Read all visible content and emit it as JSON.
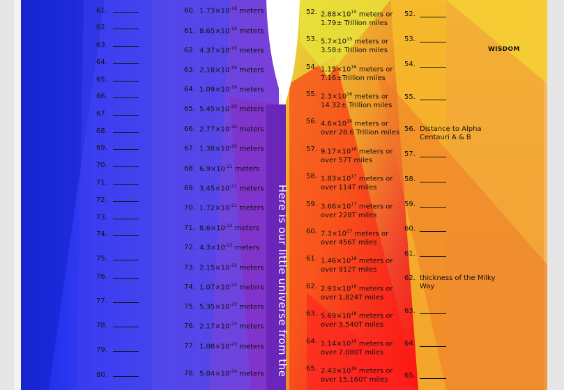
{
  "heading": "WISDOM",
  "vertical_caption": "Here is our little universe from the",
  "col1": [
    "61.",
    "62.",
    "63.",
    "64.",
    "65.",
    "66.",
    "67.",
    "68.",
    "69.",
    "70.",
    "71.",
    "72.",
    "73.",
    "74.",
    "75.",
    "76.",
    "77.",
    "78.",
    "79.",
    "80."
  ],
  "col2": [
    {
      "n": "60.",
      "m": "1.73×10",
      "e": "-18",
      "u": " meters"
    },
    {
      "n": "61.",
      "m": "8.65×10",
      "e": "-19",
      "u": " meters"
    },
    {
      "n": "62.",
      "m": "4.37×10",
      "e": "-19",
      "u": " meters"
    },
    {
      "n": "63.",
      "m": "2.18×10",
      "e": "-19",
      "u": " meters"
    },
    {
      "n": "64.",
      "m": "1.09×10",
      "e": "-19",
      "u": " meters"
    },
    {
      "n": "65.",
      "m": "5.45×10",
      "e": "-20",
      "u": " meters"
    },
    {
      "n": "66.",
      "m": "2.77×10",
      "e": "-20",
      "u": " meters"
    },
    {
      "n": "67.",
      "m": "1.38×10",
      "e": "-20",
      "u": " meters"
    },
    {
      "n": "68.",
      "m": "6.9×10",
      "e": "-21",
      "u": " meters"
    },
    {
      "n": "69.",
      "m": "3.45×10",
      "e": "-21",
      "u": " meters"
    },
    {
      "n": "70.",
      "m": "1.72×10",
      "e": "-21",
      "u": " meters"
    },
    {
      "n": "71.",
      "m": "8.6×10",
      "e": "-22",
      "u": " meters"
    },
    {
      "n": "72.",
      "m": "4.3×10",
      "e": "-22",
      "u": " meters"
    },
    {
      "n": "73.",
      "m": "2.15×10",
      "e": "-22",
      "u": " meters"
    },
    {
      "n": "74.",
      "m": "1.07×10",
      "e": "-22",
      "u": " meters"
    },
    {
      "n": "75.",
      "m": "5.35×10",
      "e": "-23",
      "u": " meters"
    },
    {
      "n": "76.",
      "m": "2.17×10",
      "e": "-23",
      "u": " meters"
    },
    {
      "n": "77.",
      "m": "1.08×10",
      "e": "-23",
      "u": " meters"
    },
    {
      "n": "78.",
      "m": "5.04×10",
      "e": "-24",
      "u": " meters"
    }
  ],
  "col3": [
    {
      "n": "52.",
      "m": "2.88×10",
      "e": "15",
      "u": " meters or",
      "l2": "1.79± Trillion miles"
    },
    {
      "n": "53.",
      "m": "5.7×10",
      "e": "15",
      "u": " meters or",
      "l2": "3.58± Trillion miles"
    },
    {
      "n": "54.",
      "m": "1.15×10",
      "e": "16",
      "u": " meters or",
      "l2": "7.16±Trillion miles"
    },
    {
      "n": "55.",
      "m": "2.3×10",
      "e": "16",
      "u": " meters or",
      "l2": "14.32± Trillion miles"
    },
    {
      "n": "56.",
      "m": "4.6×10",
      "e": "16",
      "u": " meters or",
      "l2": "over 28.6 Trillion miles"
    },
    {
      "n": "57.",
      "m": "9.17×10",
      "e": "16",
      "u": " meters or",
      "l2": "over 57T miles"
    },
    {
      "n": "58.",
      "m": "1.83×10",
      "e": "17",
      "u": " meters or",
      "l2": "over 114T miles"
    },
    {
      "n": "59.",
      "m": "3.66×10",
      "e": "17",
      "u": " meters or",
      "l2": "over 228T miles"
    },
    {
      "n": "60.",
      "m": "7.3×10",
      "e": "17",
      "u": " meters or",
      "l2": "over 456T miles"
    },
    {
      "n": "61.",
      "m": "1.46×10",
      "e": "18",
      "u": " meters or",
      "l2": "over 912T miles"
    },
    {
      "n": "62.",
      "m": "2.93×10",
      "e": "18",
      "u": " meters or",
      "l2": "over 1,824T miles"
    },
    {
      "n": "63.",
      "m": "5.69×10",
      "e": "18",
      "u": " meters or",
      "l2": "over 3,540T miles"
    },
    {
      "n": "64.",
      "m": "1.14×10",
      "e": "19",
      "u": " meters or",
      "l2": "over 7,080T miles"
    },
    {
      "n": "65.",
      "m": "2.43×10",
      "e": "19",
      "u": " meters or",
      "l2": "over 15,160T miles"
    }
  ],
  "col4": [
    {
      "n": "52.",
      "d": ""
    },
    {
      "n": "53.",
      "d": ""
    },
    {
      "n": "54.",
      "d": ""
    },
    {
      "n": "55.",
      "d": ""
    },
    {
      "n": "56.",
      "d": "Distance to Alpha Centauri A & B"
    },
    {
      "n": "57.",
      "d": ""
    },
    {
      "n": "58.",
      "d": ""
    },
    {
      "n": "59.",
      "d": ""
    },
    {
      "n": "60.",
      "d": ""
    },
    {
      "n": "61.",
      "d": ""
    },
    {
      "n": "62.",
      "d": "thickness of the Milky Way"
    },
    {
      "n": "63.",
      "d": ""
    },
    {
      "n": "64.",
      "d": ""
    },
    {
      "n": "65.",
      "d": ""
    }
  ]
}
